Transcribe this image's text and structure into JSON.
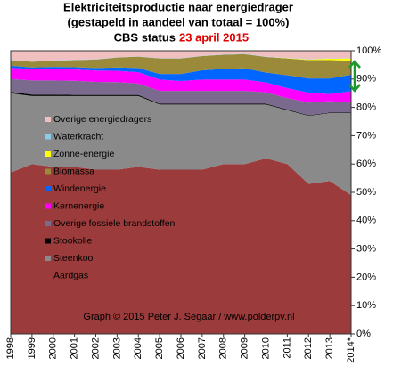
{
  "chart_data": {
    "type": "stacked_area",
    "title": "Elektriciteitsproductie  naar energiedrager",
    "subtitle": "(gestapeld in aandeel van totaal = 100%)",
    "status_prefix": "CBS status",
    "status_date": "23 april 2015",
    "credit": "Graph © 2015 Peter J. Segaar / www.polderpv.nl",
    "categories": [
      "1998",
      "1999",
      "2000",
      "2001",
      "2002",
      "2003",
      "2004",
      "2005",
      "2006",
      "2007",
      "2008",
      "2009",
      "2010",
      "2011",
      "2012",
      "2013",
      "2014*"
    ],
    "ylim": [
      0,
      100
    ],
    "yticks": [
      {
        "value": 0,
        "label": "0%"
      },
      {
        "value": 10,
        "label": "10%"
      },
      {
        "value": 20,
        "label": "20%"
      },
      {
        "value": 30,
        "label": "30%"
      },
      {
        "value": 40,
        "label": "40%"
      },
      {
        "value": 50,
        "label": "50%"
      },
      {
        "value": 60,
        "label": "60%"
      },
      {
        "value": 70,
        "label": "70%"
      },
      {
        "value": 80,
        "label": "80%"
      },
      {
        "value": 90,
        "label": "90%"
      },
      {
        "value": 100,
        "label": "100%"
      }
    ],
    "series": [
      {
        "name": "Aardgas",
        "color": "#9c3b3b",
        "values": [
          57,
          60,
          59,
          59,
          58,
          58,
          59,
          58,
          58,
          58,
          60,
          60,
          62,
          60,
          53,
          54,
          49
        ]
      },
      {
        "name": "Steenkool",
        "color": "#8a8a8a",
        "values": [
          28,
          24,
          25,
          25,
          26,
          26,
          25,
          23,
          23,
          23,
          21,
          21,
          19,
          19,
          24,
          24,
          29
        ]
      },
      {
        "name": "Stookolie",
        "color": "#000000",
        "values": [
          0.5,
          0.5,
          0.5,
          0.4,
          0.4,
          0.4,
          0.4,
          0.3,
          0.3,
          0.3,
          0.3,
          0.3,
          0.3,
          0.3,
          0.2,
          0.2,
          0.2
        ]
      },
      {
        "name": "Overige fossiele brandstoffen",
        "color": "#7a6a8e",
        "values": [
          4.5,
          5,
          5,
          5,
          4.6,
          4.5,
          4,
          4.5,
          4.5,
          4.5,
          4.5,
          4.5,
          4,
          4,
          4.5,
          4,
          3.5
        ]
      },
      {
        "name": "Kernenergie",
        "color": "#ff00ff",
        "values": [
          4,
          4,
          4,
          4,
          4,
          4,
          4,
          4,
          3.5,
          4,
          4,
          4,
          3.5,
          3.5,
          3.5,
          2.5,
          4
        ]
      },
      {
        "name": "Windenergie",
        "color": "#0066ff",
        "values": [
          0.7,
          0.6,
          0.8,
          0.8,
          0.9,
          1.2,
          1.5,
          2,
          2.5,
          3.3,
          3.8,
          4,
          3.5,
          4.5,
          5,
          5.5,
          5.8
        ]
      },
      {
        "name": "Biomassa",
        "color": "#9a8a3a",
        "values": [
          2,
          2,
          2.2,
          2.5,
          3,
          3.5,
          4,
          5.5,
          5.5,
          5,
          5,
          5,
          5.5,
          6,
          6.5,
          6.5,
          5
        ]
      },
      {
        "name": "Zonne-energie",
        "color": "#ffff00",
        "values": [
          0,
          0,
          0,
          0,
          0,
          0,
          0,
          0,
          0,
          0,
          0,
          0,
          0,
          0.1,
          0.2,
          0.5,
          0.8
        ]
      },
      {
        "name": "Waterkracht",
        "color": "#88ccee",
        "values": [
          0.1,
          0.1,
          0.1,
          0.1,
          0.1,
          0.1,
          0.1,
          0.1,
          0.1,
          0.1,
          0.1,
          0.1,
          0.1,
          0.1,
          0.1,
          0.1,
          0.1
        ]
      },
      {
        "name": "Overige energiedragers",
        "color": "#f0c0c0",
        "values": [
          3.2,
          3.8,
          3.4,
          3.2,
          3,
          2.3,
          2,
          2.6,
          2.6,
          1.8,
          1.3,
          1.1,
          2.1,
          2.5,
          3,
          2.7,
          2.6
        ]
      }
    ]
  }
}
